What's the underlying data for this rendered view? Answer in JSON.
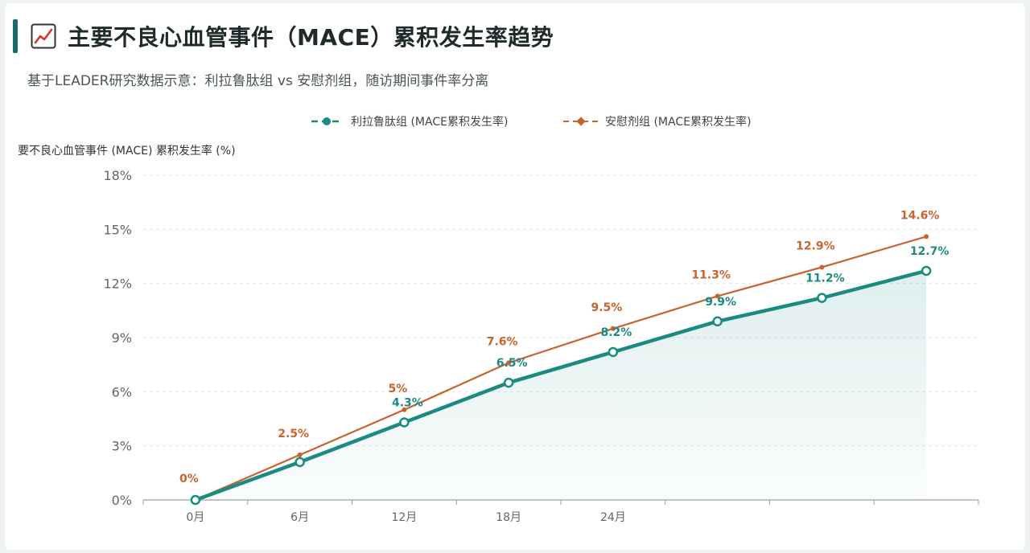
{
  "header": {
    "title": "主要不良心血管事件（MACE）累积发生率趋势",
    "subtitle": "基于LEADER研究数据示意：利拉鲁肽组 vs 安慰剂组，随访期间事件率分离"
  },
  "colors": {
    "liraglutide": "#1a8a82",
    "placebo": "#c8622e",
    "accent": "#1a6b66",
    "grid": "#e3e8e8",
    "axis_text": "#666666"
  },
  "chart_data": {
    "type": "line",
    "title": "主要不良心血管事件（MACE）累积发生率趋势",
    "ylabel": "要不良心血管事件 (MACE) 累积发生率 (%)",
    "xlabel": "",
    "categories": [
      "0月",
      "6月",
      "12月",
      "18月",
      "24月",
      "",
      "",
      ""
    ],
    "yticks": [
      "0%",
      "3%",
      "6%",
      "9%",
      "12%",
      "15%",
      "18%"
    ],
    "ylim": [
      0,
      18
    ],
    "grid": true,
    "legend_position": "top-center",
    "series": [
      {
        "name": "利拉鲁肽组 (MACE累积发生率)",
        "key": "liraglutide",
        "values": [
          0,
          2.1,
          4.3,
          6.5,
          8.2,
          9.9,
          11.2,
          12.7
        ],
        "labels": [
          "",
          "",
          "4.3%",
          "6.5%",
          "8.2%",
          "9.9%",
          "11.2%",
          "12.7%"
        ]
      },
      {
        "name": "安慰剂组 (MACE累积发生率)",
        "key": "placebo",
        "values": [
          0,
          2.5,
          5.0,
          7.6,
          9.5,
          11.3,
          12.9,
          14.6
        ],
        "labels": [
          "0%",
          "2.5%",
          "5%",
          "7.6%",
          "9.5%",
          "11.3%",
          "12.9%",
          "14.6%"
        ]
      }
    ]
  }
}
